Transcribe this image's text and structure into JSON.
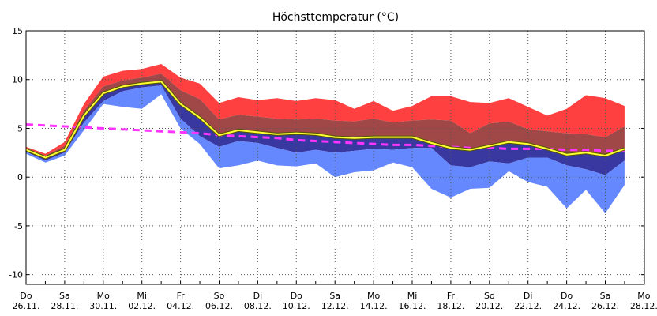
{
  "chart_data": {
    "type": "area",
    "title": "Höchsttemperatur (°C)",
    "xlabel": "",
    "ylabel": "",
    "ylim": [
      -11,
      15
    ],
    "yticks": [
      15,
      10,
      5,
      0,
      -5,
      -10
    ],
    "grid": true,
    "legend": "none",
    "x_tick_labels": [
      {
        "day": "Do",
        "date": "26.11."
      },
      {
        "day": "Sa",
        "date": "28.11."
      },
      {
        "day": "Mo",
        "date": "30.11."
      },
      {
        "day": "Mi",
        "date": "02.12."
      },
      {
        "day": "Fr",
        "date": "04.12."
      },
      {
        "day": "So",
        "date": "06.12."
      },
      {
        "day": "Di",
        "date": "08.12."
      },
      {
        "day": "Do",
        "date": "10.12."
      },
      {
        "day": "Sa",
        "date": "12.12."
      },
      {
        "day": "Mo",
        "date": "14.12."
      },
      {
        "day": "Mi",
        "date": "16.12."
      },
      {
        "day": "Fr",
        "date": "18.12."
      },
      {
        "day": "So",
        "date": "20.12."
      },
      {
        "day": "Di",
        "date": "22.12."
      },
      {
        "day": "Do",
        "date": "24.12."
      },
      {
        "day": "Sa",
        "date": "26.12."
      },
      {
        "day": "Mo",
        "date": "28.12."
      }
    ],
    "x_dates": [
      "26.11.",
      "27.11.",
      "28.11.",
      "29.11.",
      "30.11.",
      "01.12.",
      "02.12.",
      "03.12.",
      "04.12.",
      "05.12.",
      "06.12.",
      "07.12.",
      "08.12.",
      "09.12.",
      "10.12.",
      "11.12.",
      "12.12.",
      "13.12.",
      "14.12.",
      "15.12.",
      "16.12.",
      "17.12.",
      "18.12.",
      "19.12.",
      "20.12.",
      "21.12.",
      "22.12.",
      "23.12.",
      "24.12.",
      "25.12.",
      "26.12.",
      "27.12."
    ],
    "colors": {
      "outer_upper": "#ff4040",
      "inner_upper": "#a04848",
      "inner_lower": "#3838a0",
      "outer_lower": "#6688ff",
      "median": "#ffff33",
      "climate": "#ff33ff",
      "grid": "#555555"
    },
    "series": [
      {
        "values": [
          3.1,
          2.4,
          3.6,
          7.5,
          10.3,
          10.9,
          11.1,
          11.6,
          10.2,
          9.6,
          7.6,
          8.2,
          7.9,
          8.1,
          7.8,
          8.1,
          7.9,
          7.0,
          7.8,
          6.8,
          7.3,
          8.3,
          8.3,
          7.7,
          7.6,
          8.1,
          7.2,
          6.3,
          7.0,
          8.4,
          8.1,
          7.3
        ]
      },
      {
        "values": [
          3.0,
          2.2,
          3.2,
          6.8,
          9.3,
          9.9,
          10.2,
          10.6,
          8.9,
          8.0,
          5.9,
          6.4,
          6.2,
          6.0,
          5.9,
          6.0,
          5.8,
          5.7,
          6.0,
          5.6,
          5.8,
          5.9,
          5.8,
          4.5,
          5.5,
          5.7,
          4.9,
          4.7,
          4.5,
          4.4,
          4.1,
          5.2
        ]
      },
      {
        "values": [
          2.6,
          1.7,
          2.5,
          5.6,
          7.8,
          8.8,
          9.2,
          9.4,
          6.0,
          4.2,
          3.1,
          3.7,
          3.5,
          3.0,
          2.5,
          2.8,
          2.5,
          2.7,
          2.9,
          2.8,
          3.0,
          3.0,
          1.2,
          1.0,
          1.6,
          1.4,
          2.0,
          2.0,
          1.2,
          0.8,
          0.2,
          1.7
        ]
      },
      {
        "values": [
          2.4,
          1.5,
          2.2,
          4.8,
          7.5,
          7.2,
          7.0,
          8.5,
          5.0,
          3.4,
          0.9,
          1.2,
          1.7,
          1.2,
          1.1,
          1.4,
          0.0,
          0.5,
          0.7,
          1.5,
          1.0,
          -1.2,
          -2.1,
          -1.2,
          -1.1,
          0.6,
          -0.5,
          -1.0,
          -3.2,
          -1.3,
          -3.7,
          -0.8
        ]
      },
      {
        "name_hidden": true,
        "values": [
          2.8,
          2.0,
          2.8,
          6.3,
          8.6,
          9.3,
          9.6,
          9.8,
          7.5,
          6.1,
          4.3,
          4.8,
          4.6,
          4.4,
          4.5,
          4.4,
          4.1,
          4.0,
          4.1,
          4.1,
          4.1,
          3.5,
          3.0,
          2.8,
          3.2,
          3.6,
          3.4,
          2.9,
          2.3,
          2.5,
          2.2,
          2.9
        ]
      },
      {
        "values": [
          5.4,
          5.3,
          5.2,
          5.1,
          5.0,
          4.9,
          4.8,
          4.7,
          4.6,
          4.5,
          4.3,
          4.2,
          4.1,
          4.0,
          3.8,
          3.7,
          3.6,
          3.5,
          3.4,
          3.3,
          3.3,
          3.2,
          3.1,
          3.0,
          3.0,
          2.9,
          2.9,
          2.9,
          2.8,
          2.8,
          2.7,
          2.7
        ]
      }
    ]
  }
}
